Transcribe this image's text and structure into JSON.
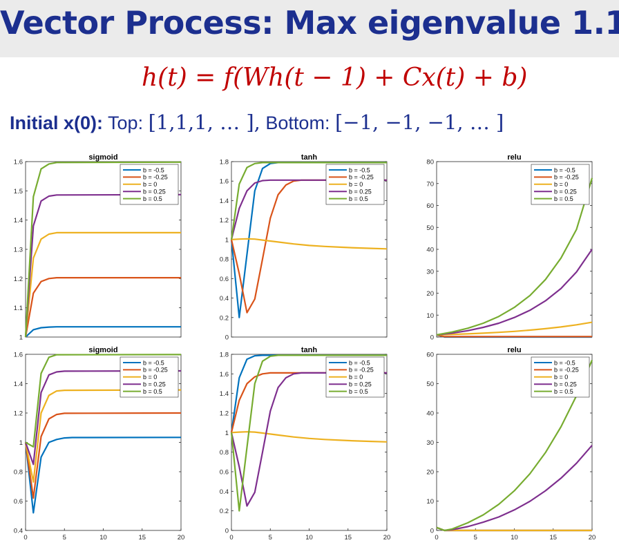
{
  "header": {
    "title": "Vector Process: Max eigenvalue 1.1",
    "equation": "h(t) = f(Wh(t − 1) + Cx(t) + b)"
  },
  "subtitle": {
    "label": "Initial x(0):",
    "top_label": "Top:",
    "top_value": "[1,1,1, … ],",
    "bottom_label": "Bottom:",
    "bottom_value": "[−1, −1, −1, … ]"
  },
  "colors": {
    "title": "#1c2f8f",
    "equation": "#c00000",
    "series": [
      "#0072bd",
      "#d95319",
      "#edb120",
      "#7e2f8e",
      "#77ac30"
    ]
  },
  "chart_data": [
    {
      "id": "top-sigmoid",
      "type": "line",
      "title": "sigmoid",
      "xlim": [
        0,
        20
      ],
      "ylim": [
        1,
        1.6
      ],
      "yticks": [
        1,
        1.1,
        1.2,
        1.3,
        1.4,
        1.5,
        1.6
      ],
      "ytick_labels": [
        "1",
        "1.1",
        "1.2",
        "1.3",
        "1.4",
        "1.5",
        "1.6"
      ],
      "xticks": [],
      "xtick_labels": [],
      "legend_position": "top-right",
      "series": [
        {
          "name": "b = -0.5",
          "x": [
            0,
            1,
            2,
            3,
            4,
            20
          ],
          "y": [
            1,
            1.025,
            1.032,
            1.034,
            1.035,
            1.035
          ]
        },
        {
          "name": "b = -0.25",
          "x": [
            0,
            1,
            2,
            3,
            4,
            20
          ],
          "y": [
            1,
            1.15,
            1.19,
            1.2,
            1.203,
            1.203
          ]
        },
        {
          "name": "b = 0",
          "x": [
            0,
            1,
            2,
            3,
            4,
            20
          ],
          "y": [
            1,
            1.27,
            1.335,
            1.352,
            1.357,
            1.357
          ]
        },
        {
          "name": "b = 0.25",
          "x": [
            0,
            1,
            2,
            3,
            4,
            20
          ],
          "y": [
            1,
            1.38,
            1.465,
            1.482,
            1.486,
            1.487
          ]
        },
        {
          "name": "b = 0.5",
          "x": [
            0,
            1,
            2,
            3,
            4,
            20
          ],
          "y": [
            1,
            1.48,
            1.575,
            1.592,
            1.597,
            1.598
          ]
        }
      ]
    },
    {
      "id": "top-tanh",
      "type": "line",
      "title": "tanh",
      "xlim": [
        0,
        20
      ],
      "ylim": [
        0,
        1.8
      ],
      "yticks": [
        0,
        0.2,
        0.4,
        0.6,
        0.8,
        1,
        1.2,
        1.4,
        1.6,
        1.8
      ],
      "ytick_labels": [
        "0",
        "0.2",
        "0.4",
        "0.6",
        "0.8",
        "1",
        "1.2",
        "1.4",
        "1.6",
        "1.8"
      ],
      "xticks": [],
      "xtick_labels": [],
      "legend_position": "top-right",
      "series": [
        {
          "name": "b = -0.5",
          "x": [
            0,
            1,
            2,
            3,
            4,
            5,
            6,
            20
          ],
          "y": [
            1,
            0.2,
            0.85,
            1.5,
            1.73,
            1.78,
            1.79,
            1.79
          ]
        },
        {
          "name": "b = -0.25",
          "x": [
            0,
            1,
            2,
            3,
            4,
            5,
            6,
            7,
            8,
            9,
            20
          ],
          "y": [
            1,
            0.65,
            0.25,
            0.39,
            0.8,
            1.22,
            1.46,
            1.56,
            1.6,
            1.61,
            1.61
          ]
        },
        {
          "name": "b = 0",
          "x": [
            0,
            1,
            2,
            3,
            4,
            6,
            8,
            10,
            12,
            14,
            16,
            18,
            20
          ],
          "y": [
            1,
            1.005,
            1.008,
            1.005,
            0.995,
            0.975,
            0.955,
            0.94,
            0.93,
            0.922,
            0.915,
            0.91,
            0.905
          ]
        },
        {
          "name": "b = 0.25",
          "x": [
            0,
            1,
            2,
            3,
            4,
            5,
            6,
            20
          ],
          "y": [
            1,
            1.32,
            1.5,
            1.58,
            1.605,
            1.61,
            1.61,
            1.61
          ]
        },
        {
          "name": "b = 0.5",
          "x": [
            0,
            1,
            2,
            3,
            4,
            20
          ],
          "y": [
            1,
            1.57,
            1.74,
            1.78,
            1.79,
            1.79
          ]
        }
      ]
    },
    {
      "id": "top-relu",
      "type": "line",
      "title": "relu",
      "xlim": [
        0,
        20
      ],
      "ylim": [
        0,
        80
      ],
      "yticks": [
        0,
        10,
        20,
        30,
        40,
        50,
        60,
        70,
        80
      ],
      "ytick_labels": [
        "0",
        "10",
        "20",
        "30",
        "40",
        "50",
        "60",
        "70",
        "80"
      ],
      "xticks": [],
      "xtick_labels": [],
      "legend_position": "top-right",
      "series": [
        {
          "name": "b = -0.5",
          "x": [
            0,
            1,
            20
          ],
          "y": [
            1,
            0,
            0
          ]
        },
        {
          "name": "b = -0.25",
          "x": [
            0,
            1,
            20
          ],
          "y": [
            1,
            0.2,
            0.2
          ]
        },
        {
          "name": "b = 0",
          "x": [
            0,
            2,
            4,
            6,
            8,
            10,
            12,
            14,
            16,
            18,
            20
          ],
          "y": [
            1,
            1.2,
            1.46,
            1.77,
            2.14,
            2.59,
            3.14,
            3.8,
            4.59,
            5.56,
            6.73
          ]
        },
        {
          "name": "b = 0.25",
          "x": [
            0,
            2,
            4,
            6,
            8,
            10,
            12,
            14,
            16,
            18,
            20
          ],
          "y": [
            1,
            1.8,
            2.9,
            4.4,
            6.3,
            8.9,
            12.2,
            16.5,
            22.1,
            29.7,
            40
          ]
        },
        {
          "name": "b = 0.5",
          "x": [
            0,
            2,
            4,
            6,
            8,
            10,
            12,
            14,
            16,
            18,
            20
          ],
          "y": [
            1,
            2.3,
            4,
            6.3,
            9.4,
            13.5,
            18.9,
            26.2,
            36,
            49.1,
            72.5
          ]
        }
      ]
    },
    {
      "id": "bottom-sigmoid",
      "type": "line",
      "title": "sigmoid",
      "xlim": [
        0,
        20
      ],
      "ylim": [
        0.4,
        1.6
      ],
      "yticks": [
        0.4,
        0.6,
        0.8,
        1,
        1.2,
        1.4,
        1.6
      ],
      "ytick_labels": [
        "0.4",
        "0.6",
        "0.8",
        "1",
        "1.2",
        "1.4",
        "1.6"
      ],
      "xticks": [
        0,
        5,
        10,
        15,
        20
      ],
      "xtick_labels": [
        "0",
        "5",
        "10",
        "15",
        "20"
      ],
      "legend_position": "top-right",
      "series": [
        {
          "name": "b = -0.5",
          "x": [
            0,
            1,
            2,
            3,
            4,
            5,
            6,
            20
          ],
          "y": [
            1,
            0.52,
            0.9,
            1,
            1.02,
            1.03,
            1.033,
            1.034
          ]
        },
        {
          "name": "b = -0.25",
          "x": [
            0,
            1,
            2,
            3,
            4,
            5,
            20
          ],
          "y": [
            1,
            0.62,
            1.04,
            1.16,
            1.19,
            1.198,
            1.2
          ]
        },
        {
          "name": "b = 0",
          "x": [
            0,
            1,
            2,
            3,
            4,
            5,
            20
          ],
          "y": [
            1,
            0.73,
            1.2,
            1.32,
            1.35,
            1.355,
            1.357
          ]
        },
        {
          "name": "b = 0.25",
          "x": [
            0,
            1,
            2,
            3,
            4,
            5,
            20
          ],
          "y": [
            1,
            0.85,
            1.34,
            1.46,
            1.48,
            1.485,
            1.487
          ]
        },
        {
          "name": "b = 0.5",
          "x": [
            0,
            1,
            2,
            3,
            4,
            20
          ],
          "y": [
            1,
            0.97,
            1.47,
            1.58,
            1.597,
            1.598
          ]
        }
      ]
    },
    {
      "id": "bottom-tanh",
      "type": "line",
      "title": "tanh",
      "xlim": [
        0,
        20
      ],
      "ylim": [
        0,
        1.8
      ],
      "yticks": [
        0,
        0.2,
        0.4,
        0.6,
        0.8,
        1,
        1.2,
        1.4,
        1.6,
        1.8
      ],
      "ytick_labels": [
        "0",
        "0.2",
        "0.4",
        "0.6",
        "0.8",
        "1",
        "1.2",
        "1.4",
        "1.6",
        "1.8"
      ],
      "xticks": [
        0,
        5,
        10,
        15,
        20
      ],
      "xtick_labels": [
        "0",
        "5",
        "10",
        "15",
        "20"
      ],
      "legend_position": "top-right",
      "series": [
        {
          "name": "b = -0.5",
          "x": [
            0,
            1,
            2,
            3,
            4,
            20
          ],
          "y": [
            1,
            1.56,
            1.75,
            1.785,
            1.79,
            1.79
          ]
        },
        {
          "name": "b = -0.25",
          "x": [
            0,
            1,
            2,
            3,
            4,
            5,
            6,
            20
          ],
          "y": [
            1,
            1.33,
            1.5,
            1.57,
            1.6,
            1.61,
            1.61,
            1.61
          ]
        },
        {
          "name": "b = 0",
          "x": [
            0,
            1,
            2,
            3,
            4,
            6,
            8,
            10,
            12,
            14,
            16,
            18,
            20
          ],
          "y": [
            1,
            1.005,
            1.008,
            1.005,
            0.995,
            0.975,
            0.955,
            0.94,
            0.93,
            0.922,
            0.915,
            0.91,
            0.905
          ]
        },
        {
          "name": "b = 0.25",
          "x": [
            0,
            1,
            2,
            3,
            4,
            5,
            6,
            7,
            8,
            9,
            20
          ],
          "y": [
            1,
            0.65,
            0.25,
            0.39,
            0.8,
            1.22,
            1.46,
            1.56,
            1.6,
            1.61,
            1.61
          ]
        },
        {
          "name": "b = 0.5",
          "x": [
            0,
            1,
            2,
            3,
            4,
            5,
            6,
            20
          ],
          "y": [
            1,
            0.2,
            0.85,
            1.5,
            1.73,
            1.78,
            1.79,
            1.79
          ]
        }
      ]
    },
    {
      "id": "bottom-relu",
      "type": "line",
      "title": "relu",
      "xlim": [
        0,
        20
      ],
      "ylim": [
        0,
        60
      ],
      "yticks": [
        0,
        10,
        20,
        30,
        40,
        50,
        60
      ],
      "ytick_labels": [
        "0",
        "10",
        "20",
        "30",
        "40",
        "50",
        "60"
      ],
      "xticks": [
        0,
        5,
        10,
        15,
        20
      ],
      "xtick_labels": [
        "0",
        "5",
        "10",
        "15",
        "20"
      ],
      "legend_position": "top-right",
      "series": [
        {
          "name": "b = -0.5",
          "x": [
            0,
            1,
            20
          ],
          "y": [
            1,
            0,
            0
          ]
        },
        {
          "name": "b = -0.25",
          "x": [
            0,
            1,
            20
          ],
          "y": [
            1,
            0,
            0
          ]
        },
        {
          "name": "b = 0",
          "x": [
            0,
            1,
            20
          ],
          "y": [
            1,
            0,
            0
          ]
        },
        {
          "name": "b = 0.25",
          "x": [
            0,
            1,
            2,
            4,
            6,
            8,
            10,
            12,
            14,
            16,
            18,
            20
          ],
          "y": [
            1,
            0,
            0.25,
            1.3,
            2.8,
            4.6,
            7,
            9.9,
            13.5,
            17.8,
            22.9,
            29
          ]
        },
        {
          "name": "b = 0.5",
          "x": [
            0,
            1,
            2,
            4,
            6,
            8,
            10,
            12,
            14,
            16,
            18,
            20
          ],
          "y": [
            1,
            0,
            0.5,
            2.6,
            5.3,
            8.9,
            13.5,
            19.3,
            26.5,
            35.3,
            45.9,
            58
          ]
        }
      ]
    }
  ]
}
